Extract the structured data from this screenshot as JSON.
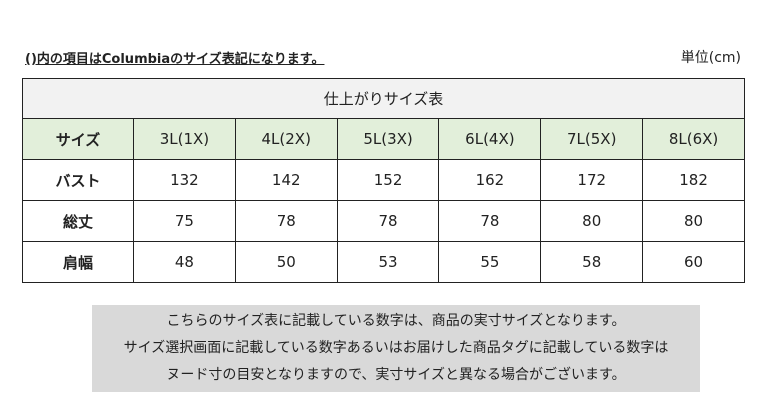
{
  "note": "()内の項目はColumbiaのサイズ表記になります。",
  "unit": "単位(cm)",
  "table": {
    "title": "仕上がりサイズ表",
    "header": [
      "サイズ",
      "3L(1X)",
      "4L(2X)",
      "5L(3X)",
      "6L(4X)",
      "7L(5X)",
      "8L(6X)"
    ],
    "rows": [
      [
        "バスト",
        132,
        142,
        152,
        162,
        172,
        182
      ],
      [
        "総丈",
        75,
        78,
        78,
        78,
        80,
        80
      ],
      [
        "肩幅",
        48,
        50,
        53,
        55,
        58,
        60
      ]
    ]
  },
  "footer": {
    "lines": [
      "こちらのサイズ表に記載している数字は、商品の実寸サイズとなります。",
      "サイズ選択画面に記載している数字あるいはお届けした商品タグに記載している数字は",
      "ヌード寸の目安となりますので、実寸サイズと異なる場合がございます。"
    ]
  }
}
